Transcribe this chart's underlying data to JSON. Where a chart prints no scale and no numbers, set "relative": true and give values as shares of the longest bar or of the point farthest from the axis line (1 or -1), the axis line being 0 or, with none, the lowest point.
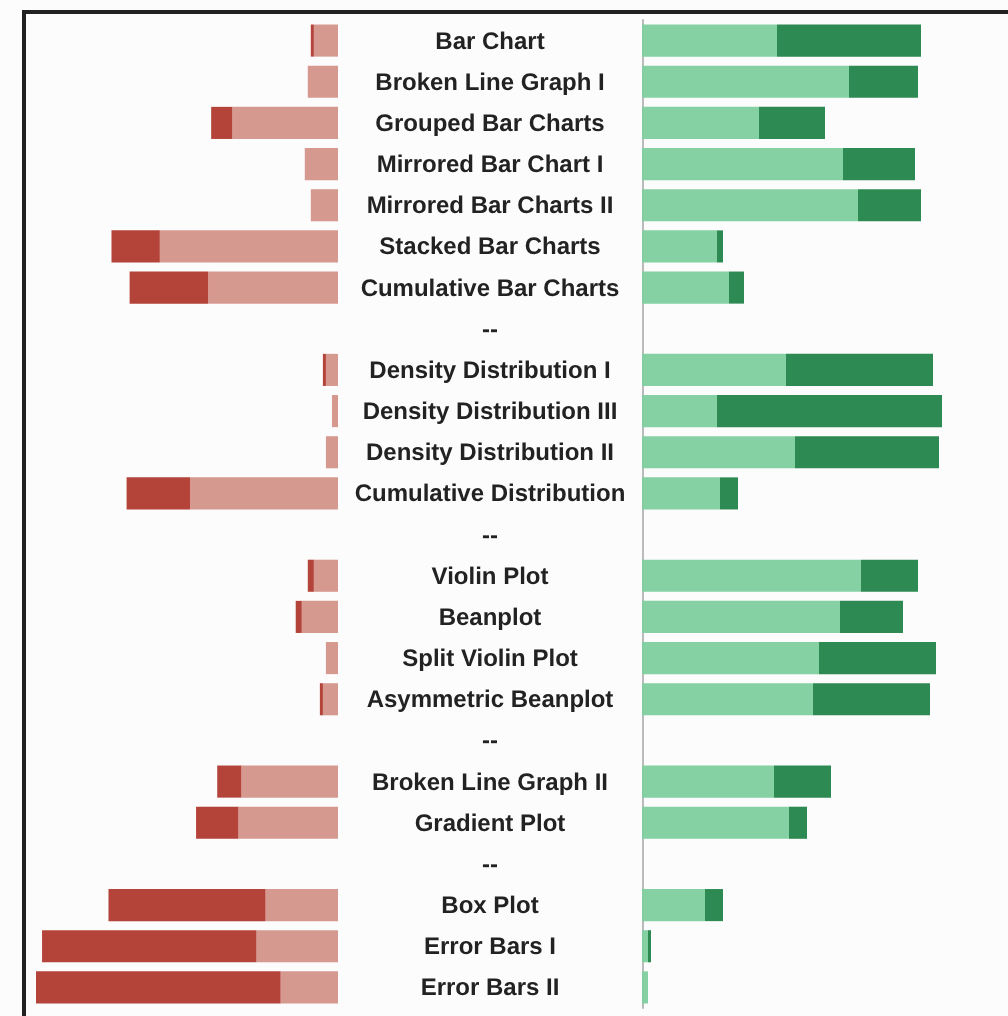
{
  "chart_data": [
    {
      "type": "bar",
      "orientation": "horizontal",
      "stacked": true,
      "relative": true,
      "tick_labels": "y",
      "categories": [
        "Bar Chart",
        "Broken Line Graph I",
        "Grouped Bar Charts",
        "Mirrored Bar Chart I",
        "Mirrored Bar Charts II",
        "Stacked Bar Charts",
        "Cumulative Bar Charts",
        "--",
        "Density Distribution I",
        "Density Distribution III",
        "Density Distribution II",
        "Cumulative Distribution",
        "--",
        "Violin Plot",
        "Beanplot",
        "Split Violin Plot",
        "Asymmetric Beanplot",
        "--",
        "Broken Line Graph II",
        "Gradient Plot",
        "--",
        "Box Plot",
        "Error Bars I",
        "Error Bars II"
      ],
      "series": [
        {
          "color": "#d4938a",
          "values": [
            -0.08,
            -0.1,
            -0.35,
            -0.11,
            -0.09,
            -0.59,
            -0.43,
            null,
            -0.04,
            -0.02,
            -0.04,
            -0.49,
            null,
            -0.08,
            -0.12,
            -0.04,
            -0.05,
            null,
            -0.32,
            -0.33,
            null,
            -0.24,
            -0.27,
            -0.19
          ]
        },
        {
          "color": "#b03a2e",
          "values": [
            -0.01,
            0,
            -0.07,
            0,
            0,
            -0.16,
            -0.26,
            null,
            -0.01,
            0,
            0,
            -0.21,
            null,
            -0.02,
            -0.02,
            0,
            -0.01,
            null,
            -0.08,
            -0.14,
            null,
            -0.52,
            -0.71,
            -0.81
          ]
        }
      ]
    },
    {
      "type": "bar",
      "orientation": "horizontal",
      "stacked": true,
      "relative": true,
      "categories": [
        null,
        null,
        null,
        null,
        null,
        null,
        null,
        null,
        null,
        null,
        null,
        null,
        null,
        null,
        null,
        null,
        null,
        null,
        null,
        null,
        null,
        null,
        null,
        null
      ],
      "series": [
        {
          "color": "#7fcf9f",
          "values": [
            0.45,
            0.69,
            0.39,
            0.67,
            0.72,
            0.25,
            0.29,
            null,
            0.48,
            0.25,
            0.51,
            0.26,
            null,
            0.73,
            0.66,
            0.59,
            0.57,
            null,
            0.44,
            0.49,
            null,
            0.21,
            0.02,
            0.02
          ]
        },
        {
          "color": "#23844a",
          "values": [
            0.48,
            0.23,
            0.22,
            0.24,
            0.21,
            0.02,
            0.05,
            null,
            0.49,
            0.75,
            0.48,
            0.06,
            null,
            0.19,
            0.21,
            0.39,
            0.39,
            null,
            0.19,
            0.06,
            null,
            0.06,
            0.01,
            0
          ]
        }
      ]
    }
  ]
}
